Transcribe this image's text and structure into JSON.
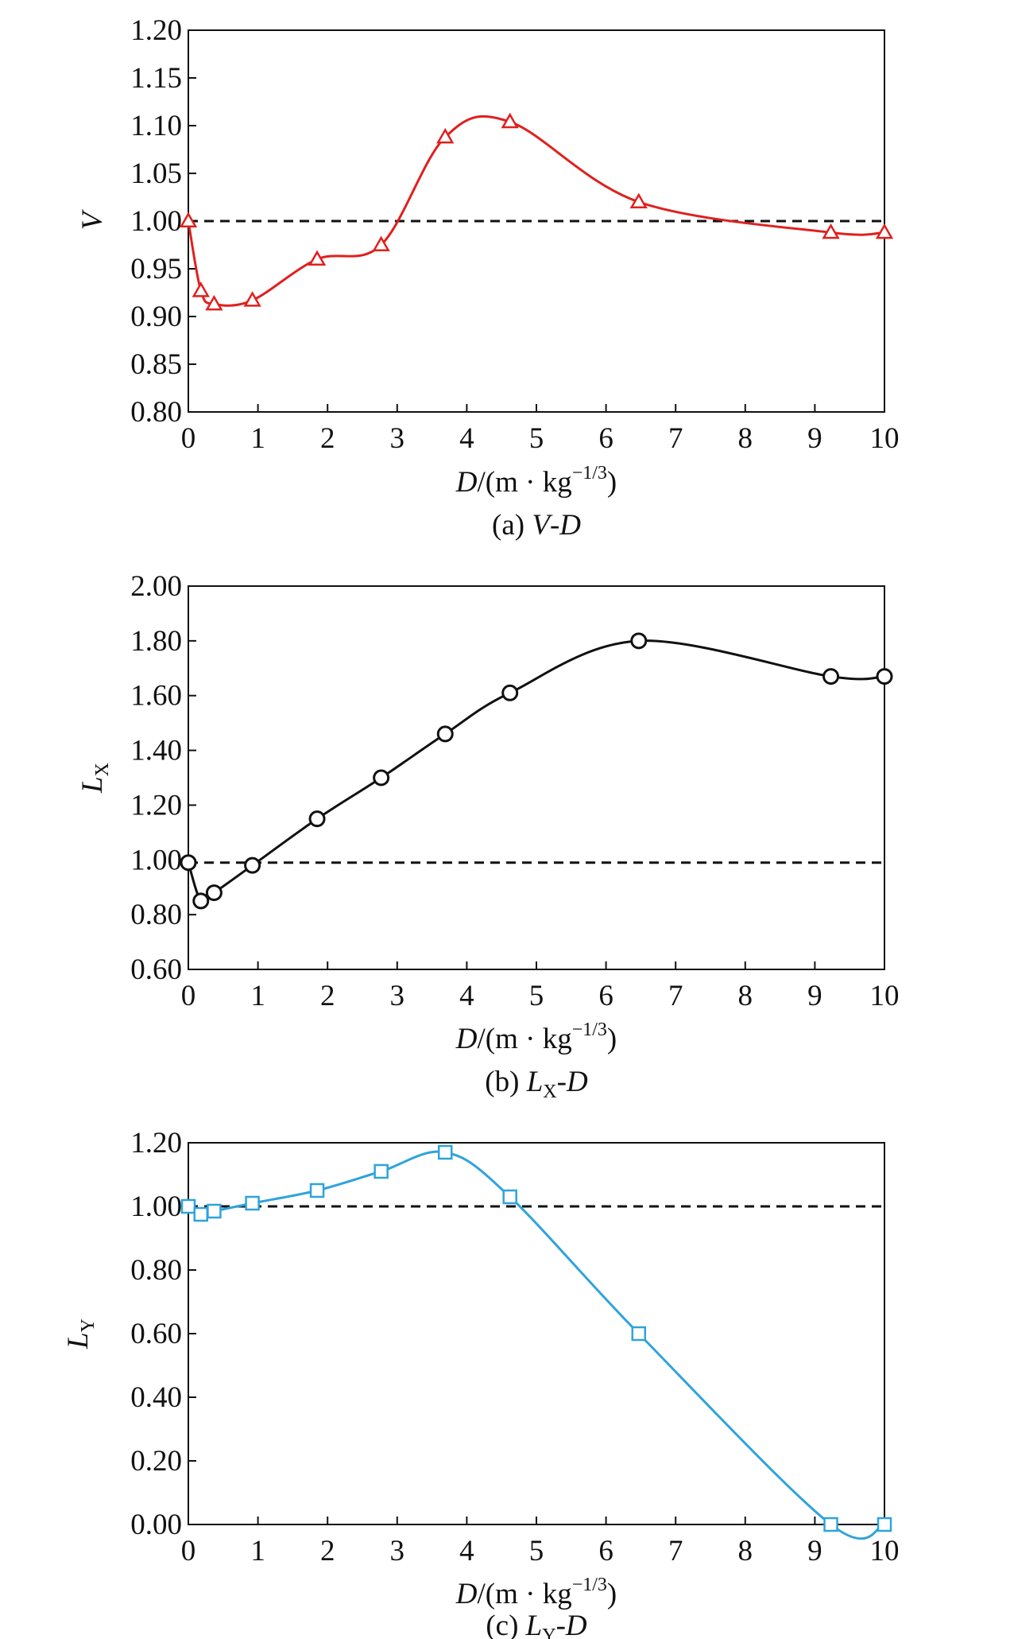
{
  "chart_data": [
    {
      "type": "line",
      "panel": "a",
      "caption": "(a) V-D",
      "xlabel": "D/(m · kg^-1/3)",
      "ylabel": "V",
      "xlim": [
        0,
        10
      ],
      "ylim": [
        0.8,
        1.2
      ],
      "xticks": [
        "0",
        "1",
        "2",
        "3",
        "4",
        "5",
        "6",
        "7",
        "8",
        "9",
        "10"
      ],
      "yticks": [
        "0.80",
        "0.85",
        "0.90",
        "0.95",
        "1.00",
        "1.05",
        "1.10",
        "1.15",
        "1.20"
      ],
      "reference_line": 1.0,
      "marker": "triangle",
      "color": "#e0201e",
      "series": [
        {
          "x": [
            0,
            0.18,
            0.37,
            0.92,
            1.85,
            2.77,
            3.69,
            4.62,
            6.47,
            9.23,
            10
          ],
          "y": [
            1.0,
            0.927,
            0.913,
            0.917,
            0.96,
            0.975,
            1.088,
            1.104,
            1.02,
            0.988,
            0.988
          ]
        }
      ]
    },
    {
      "type": "line",
      "panel": "b",
      "caption": "(b) LX-D",
      "xlabel": "D/(m · kg^-1/3)",
      "ylabel": "LX",
      "xlim": [
        0,
        10
      ],
      "ylim": [
        0.6,
        2.0
      ],
      "xticks": [
        "0",
        "1",
        "2",
        "3",
        "4",
        "5",
        "6",
        "7",
        "8",
        "9",
        "10"
      ],
      "yticks": [
        "0.60",
        "0.80",
        "1.00",
        "1.20",
        "1.40",
        "1.60",
        "1.80",
        "2.00"
      ],
      "reference_line": 0.99,
      "marker": "circle",
      "color": "#111111",
      "series": [
        {
          "x": [
            0,
            0.18,
            0.37,
            0.92,
            1.85,
            2.77,
            3.69,
            4.62,
            6.47,
            9.23,
            10
          ],
          "y": [
            0.99,
            0.85,
            0.88,
            0.98,
            1.15,
            1.3,
            1.46,
            1.61,
            1.8,
            1.67,
            1.67
          ]
        }
      ]
    },
    {
      "type": "line",
      "panel": "c",
      "caption": "(c) LY-D",
      "xlabel": "D/(m · kg^-1/3)",
      "ylabel": "LY",
      "xlim": [
        0,
        10
      ],
      "ylim": [
        0.0,
        1.2
      ],
      "xticks": [
        "0",
        "1",
        "2",
        "3",
        "4",
        "5",
        "6",
        "7",
        "8",
        "9",
        "10"
      ],
      "yticks": [
        "0.00",
        "0.20",
        "0.40",
        "0.60",
        "0.80",
        "1.00",
        "1.20"
      ],
      "reference_line": 1.0,
      "marker": "square",
      "color": "#2fa3dc",
      "series": [
        {
          "x": [
            0,
            0.18,
            0.37,
            0.92,
            1.85,
            2.77,
            3.69,
            4.62,
            6.47,
            9.23,
            10
          ],
          "y": [
            1.0,
            0.975,
            0.985,
            1.01,
            1.05,
            1.11,
            1.17,
            1.03,
            0.6,
            0.0,
            0.0
          ]
        }
      ]
    }
  ]
}
